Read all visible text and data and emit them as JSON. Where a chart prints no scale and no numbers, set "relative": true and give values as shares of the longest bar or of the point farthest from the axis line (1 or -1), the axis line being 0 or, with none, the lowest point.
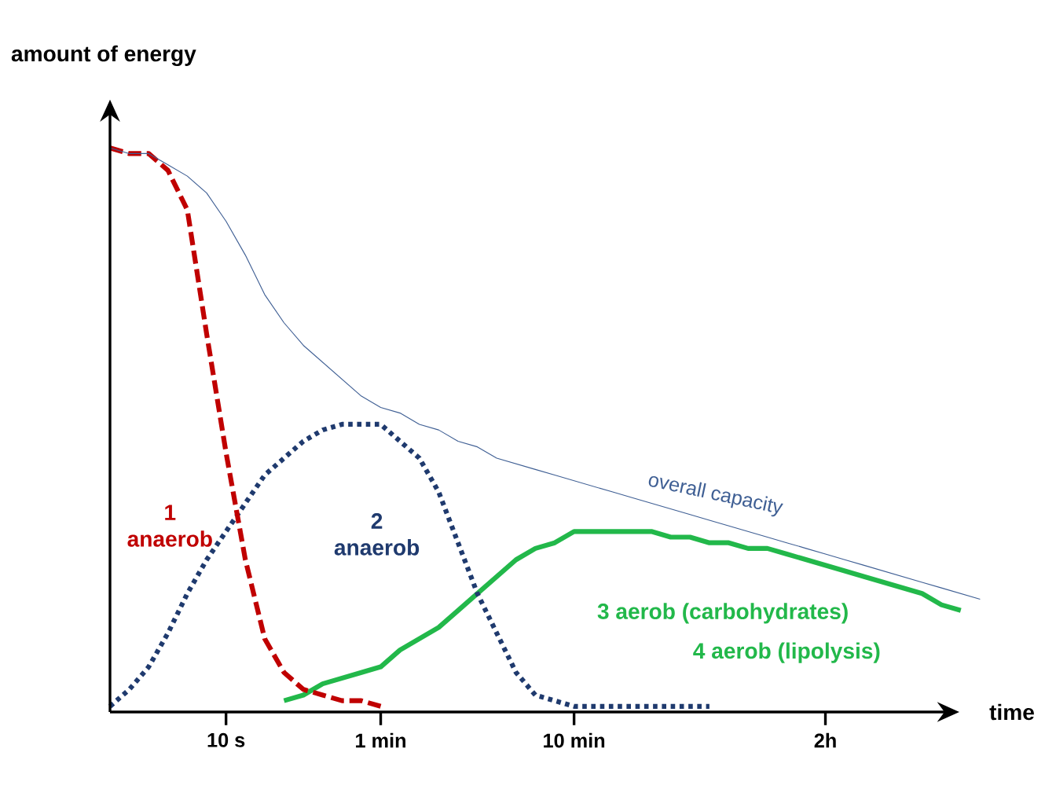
{
  "chart_data": {
    "type": "line",
    "relative": true,
    "xlabel": "time",
    "ylabel": "amount of energy",
    "categories": [
      null,
      null,
      null,
      null,
      null,
      null,
      "10 s",
      null,
      null,
      null,
      null,
      null,
      null,
      null,
      "1 min",
      null,
      null,
      null,
      null,
      null,
      null,
      null,
      null,
      null,
      "10 min",
      null,
      null,
      null,
      null,
      null,
      null,
      null,
      null,
      null,
      null,
      null,
      null,
      "2h",
      null,
      null,
      null,
      null,
      null,
      null,
      null,
      null
    ],
    "marker": "none",
    "series": [
      {
        "name": "overall capacity",
        "color": "#3f5f94",
        "line_style": "solid",
        "values": [
          1.0,
          0.99,
          0.99,
          0.97,
          0.95,
          0.92,
          0.87,
          0.81,
          0.74,
          0.69,
          0.65,
          0.62,
          0.59,
          0.56,
          0.54,
          0.53,
          0.51,
          0.5,
          0.48,
          0.47,
          0.45,
          0.44,
          0.43,
          0.42,
          0.41,
          0.4,
          0.39,
          0.38,
          0.37,
          0.36,
          0.35,
          0.34,
          0.33,
          0.32,
          0.31,
          0.3,
          0.29,
          0.28,
          0.27,
          0.26,
          0.25,
          0.24,
          0.23,
          0.22,
          0.21,
          0.2
        ]
      },
      {
        "name": "1 anaerob",
        "color": "#c00000",
        "line_style": "dashed",
        "values": [
          1.0,
          0.99,
          0.99,
          0.96,
          0.89,
          0.67,
          0.46,
          0.27,
          0.13,
          0.07,
          0.04,
          0.03,
          0.02,
          0.02,
          0.01,
          null,
          null,
          null,
          null,
          null,
          null,
          null,
          null,
          null,
          null,
          null,
          null,
          null,
          null,
          null,
          null,
          null,
          null,
          null,
          null,
          null,
          null,
          null,
          null,
          null,
          null,
          null,
          null,
          null,
          null,
          null
        ]
      },
      {
        "name": "2 anaerob",
        "color": "#1f3a6e",
        "line_style": "dotted",
        "values": [
          0.01,
          0.04,
          0.08,
          0.14,
          0.21,
          0.27,
          0.32,
          0.37,
          0.42,
          0.45,
          0.48,
          0.5,
          0.51,
          0.51,
          0.51,
          0.48,
          0.45,
          0.39,
          0.3,
          0.21,
          0.14,
          0.07,
          0.03,
          0.02,
          0.01,
          0.01,
          0.01,
          0.01,
          0.01,
          0.01,
          0.01,
          0.01,
          null,
          null,
          null,
          null,
          null,
          null,
          null,
          null,
          null,
          null,
          null,
          null,
          null,
          null
        ]
      },
      {
        "name": "3 aerob (carbohydrates)",
        "color": "#22b84a",
        "line_style": "solid",
        "values": [
          null,
          null,
          null,
          null,
          null,
          null,
          null,
          null,
          null,
          0.02,
          0.03,
          0.05,
          0.06,
          0.07,
          0.08,
          0.11,
          0.13,
          0.15,
          0.18,
          0.21,
          0.24,
          0.27,
          0.29,
          0.3,
          0.32,
          0.32,
          0.32,
          0.32,
          0.32,
          0.31,
          0.31,
          0.3,
          0.3,
          0.29,
          0.29,
          0.28,
          0.27,
          0.26,
          0.25,
          0.24,
          0.23,
          0.22,
          0.21,
          0.19,
          0.18,
          null
        ]
      }
    ],
    "annotations": [
      "4 aerob (lipolysis)"
    ]
  }
}
